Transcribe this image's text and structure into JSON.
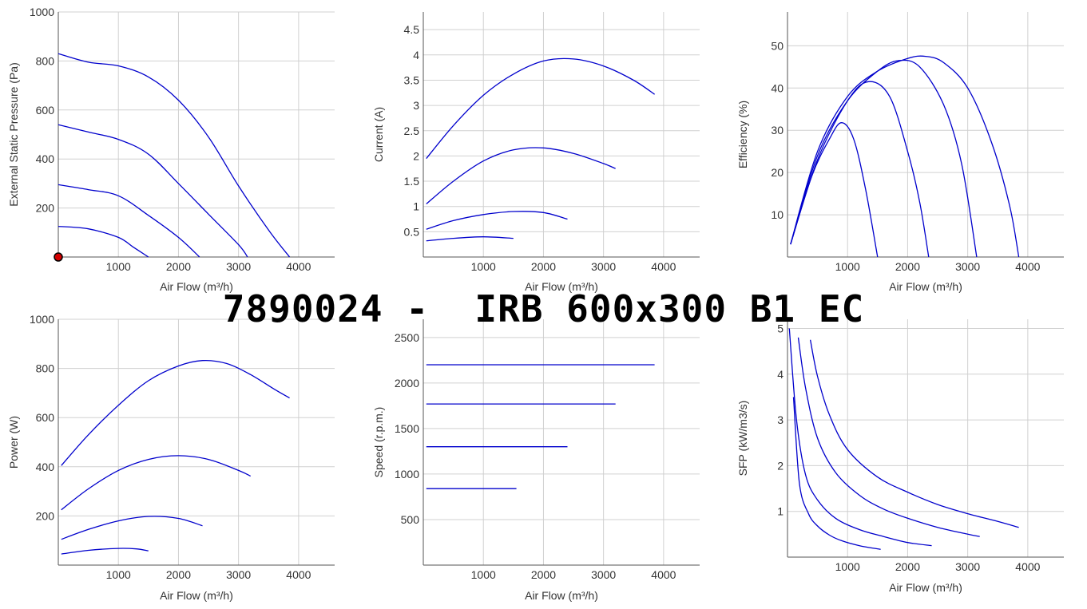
{
  "title": "7890024 -  IRB 600x300 B1 EC",
  "colors": {
    "curve": "#0000cc",
    "grid": "#d0d0d0",
    "axis": "#555555",
    "marker": "#d40000"
  },
  "chart_data": [
    {
      "id": "pressure",
      "type": "line",
      "xlabel": "Air Flow (m³/h)",
      "ylabel": "External Static Pressure (Pa)",
      "xlim": [
        0,
        4600
      ],
      "ylim": [
        0,
        1000
      ],
      "xticks": [
        1000,
        2000,
        3000,
        4000
      ],
      "yticks": [
        200,
        400,
        600,
        800,
        1000
      ],
      "marker": {
        "x": 0,
        "y": 0
      },
      "series": [
        {
          "x": [
            0,
            500,
            1000,
            1500,
            2000,
            2500,
            3000,
            3500,
            3850
          ],
          "y": [
            830,
            795,
            780,
            735,
            640,
            490,
            290,
            110,
            0
          ]
        },
        {
          "x": [
            0,
            500,
            1000,
            1500,
            2000,
            2500,
            3000,
            3150
          ],
          "y": [
            540,
            510,
            480,
            420,
            300,
            175,
            50,
            0
          ]
        },
        {
          "x": [
            0,
            500,
            1000,
            1500,
            2000,
            2350
          ],
          "y": [
            295,
            275,
            250,
            170,
            80,
            0
          ]
        },
        {
          "x": [
            0,
            500,
            1000,
            1250,
            1500
          ],
          "y": [
            125,
            115,
            80,
            40,
            0
          ]
        }
      ]
    },
    {
      "id": "current",
      "type": "line",
      "xlabel": "Air Flow (m³/h)",
      "ylabel": "Current (A)",
      "xlim": [
        0,
        4600
      ],
      "ylim": [
        0,
        4.85
      ],
      "xticks": [
        1000,
        2000,
        3000,
        4000
      ],
      "yticks": [
        0.5,
        1,
        1.5,
        2,
        2.5,
        3,
        3.5,
        4,
        4.5
      ],
      "series": [
        {
          "x": [
            50,
            500,
            1000,
            1500,
            2000,
            2500,
            3000,
            3500,
            3850
          ],
          "y": [
            1.95,
            2.6,
            3.2,
            3.62,
            3.88,
            3.92,
            3.78,
            3.5,
            3.22
          ]
        },
        {
          "x": [
            50,
            500,
            1000,
            1500,
            2000,
            2500,
            3000,
            3200
          ],
          "y": [
            1.05,
            1.5,
            1.9,
            2.12,
            2.16,
            2.05,
            1.85,
            1.75
          ]
        },
        {
          "x": [
            50,
            500,
            1000,
            1500,
            2000,
            2400
          ],
          "y": [
            0.55,
            0.72,
            0.84,
            0.9,
            0.88,
            0.75
          ]
        },
        {
          "x": [
            50,
            500,
            1000,
            1500
          ],
          "y": [
            0.32,
            0.37,
            0.4,
            0.37
          ]
        }
      ]
    },
    {
      "id": "efficiency",
      "type": "line",
      "xlabel": "Air Flow (m³/h)",
      "ylabel": "Efficiency (%)",
      "xlim": [
        0,
        4600
      ],
      "ylim": [
        0,
        58
      ],
      "xticks": [
        1000,
        2000,
        3000,
        4000
      ],
      "yticks": [
        10,
        20,
        30,
        40,
        50
      ],
      "series": [
        {
          "x": [
            50,
            500,
            1000,
            1500,
            2000,
            2300,
            2600,
            3000,
            3400,
            3700,
            3850
          ],
          "y": [
            3,
            25,
            38,
            44,
            47,
            47.5,
            46,
            40,
            27,
            12,
            0
          ]
        },
        {
          "x": [
            50,
            500,
            1000,
            1500,
            1850,
            2200,
            2600,
            2900,
            3150
          ],
          "y": [
            3,
            24,
            37,
            44,
            46.5,
            45,
            36,
            22,
            0
          ]
        },
        {
          "x": [
            50,
            500,
            1000,
            1350,
            1700,
            2000,
            2200,
            2350
          ],
          "y": [
            3,
            23,
            37,
            41.5,
            38,
            25,
            13,
            0
          ]
        },
        {
          "x": [
            50,
            400,
            700,
            900,
            1100,
            1300,
            1500
          ],
          "y": [
            3,
            19,
            28,
            31.8,
            28,
            16,
            0
          ]
        }
      ]
    },
    {
      "id": "power",
      "type": "line",
      "xlabel": "Air Flow (m³/h)",
      "ylabel": "Power (W)",
      "xlim": [
        0,
        4600
      ],
      "ylim": [
        0,
        1000
      ],
      "xticks": [
        1000,
        2000,
        3000,
        4000
      ],
      "yticks": [
        200,
        400,
        600,
        800,
        1000
      ],
      "series": [
        {
          "x": [
            50,
            500,
            1000,
            1500,
            2000,
            2400,
            2800,
            3200,
            3600,
            3850
          ],
          "y": [
            405,
            530,
            650,
            750,
            810,
            832,
            820,
            775,
            715,
            680
          ]
        },
        {
          "x": [
            50,
            500,
            1000,
            1500,
            2000,
            2500,
            3000,
            3200
          ],
          "y": [
            225,
            310,
            385,
            430,
            445,
            430,
            385,
            362
          ]
        },
        {
          "x": [
            50,
            500,
            1000,
            1500,
            2000,
            2400
          ],
          "y": [
            105,
            145,
            180,
            198,
            190,
            160
          ]
        },
        {
          "x": [
            50,
            500,
            1000,
            1300,
            1500
          ],
          "y": [
            45,
            60,
            68,
            66,
            58
          ]
        }
      ]
    },
    {
      "id": "speed",
      "type": "line",
      "xlabel": "Air Flow (m³/h)",
      "ylabel": "Speed (r.p.m.)",
      "xlim": [
        0,
        4600
      ],
      "ylim": [
        0,
        2700
      ],
      "xticks": [
        1000,
        2000,
        3000,
        4000
      ],
      "yticks": [
        500,
        1000,
        1500,
        2000,
        2500
      ],
      "series": [
        {
          "x": [
            50,
            3850
          ],
          "y": [
            2200,
            2200
          ]
        },
        {
          "x": [
            50,
            3200
          ],
          "y": [
            1770,
            1770
          ]
        },
        {
          "x": [
            50,
            2400
          ],
          "y": [
            1300,
            1300
          ]
        },
        {
          "x": [
            50,
            1550
          ],
          "y": [
            840,
            840
          ]
        }
      ]
    },
    {
      "id": "sfp",
      "type": "line",
      "xlabel": "Air Flow (m³/h)",
      "ylabel": "SFP (kW/m3/s)",
      "xlim": [
        0,
        4600
      ],
      "ylim": [
        0,
        5.2
      ],
      "xticks": [
        1000,
        2000,
        3000,
        4000
      ],
      "yticks": [
        1,
        2,
        3,
        4,
        5
      ],
      "series": [
        {
          "x": [
            380,
            500,
            700,
            1000,
            1500,
            2000,
            2500,
            3000,
            3500,
            3850
          ],
          "y": [
            4.75,
            3.95,
            3.1,
            2.35,
            1.75,
            1.42,
            1.15,
            0.95,
            0.78,
            0.65
          ]
        },
        {
          "x": [
            180,
            300,
            500,
            800,
            1200,
            1600,
            2000,
            2500,
            3000,
            3200
          ],
          "y": [
            4.8,
            3.7,
            2.6,
            1.85,
            1.35,
            1.05,
            0.85,
            0.65,
            0.5,
            0.45
          ]
        },
        {
          "x": [
            30,
            150,
            300,
            500,
            800,
            1200,
            1600,
            2000,
            2400
          ],
          "y": [
            5.0,
            3.0,
            1.8,
            1.25,
            0.85,
            0.6,
            0.45,
            0.32,
            0.25
          ]
        },
        {
          "x": [
            100,
            200,
            350,
            500,
            700,
            900,
            1200,
            1550
          ],
          "y": [
            3.5,
            1.6,
            0.95,
            0.68,
            0.48,
            0.36,
            0.25,
            0.17
          ]
        }
      ]
    }
  ]
}
